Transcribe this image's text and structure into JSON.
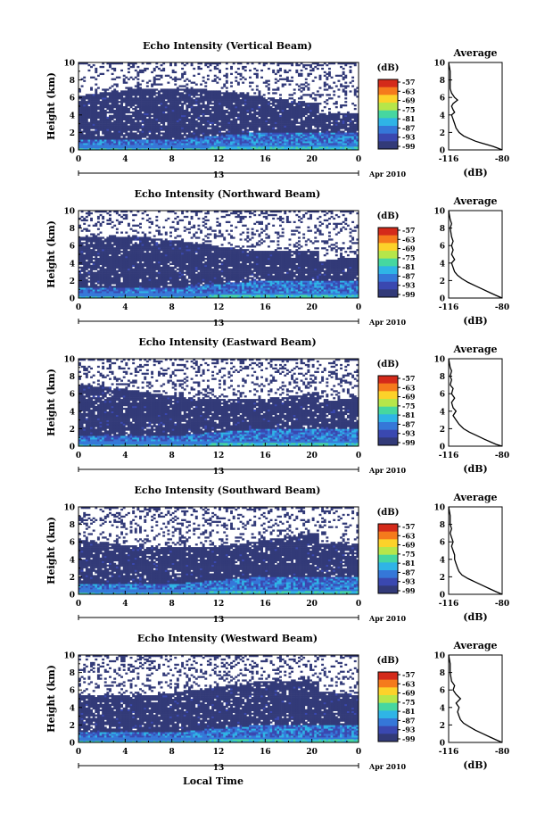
{
  "chart_data": {
    "type": "heatmap",
    "common": {
      "xlabel": "Local Time",
      "xticks": [
        "0",
        "4",
        "8",
        "12",
        "16",
        "20",
        "0"
      ],
      "x_range_hours": [
        0,
        24
      ],
      "date_label": "Apr 2010",
      "date_tick_label": "13",
      "ylabel": "Height (km)",
      "yticks": [
        "0",
        "2",
        "4",
        "6",
        "8",
        "10"
      ],
      "y_range_km": [
        0,
        10
      ],
      "colorbar_title": "(dB)",
      "colorbar_ticks": [
        "-57",
        "-63",
        "-69",
        "-75",
        "-81",
        "-87",
        "-93",
        "-99"
      ],
      "colorbar_colors": [
        "#d42a1a",
        "#f57a1c",
        "#fcd22a",
        "#b6e64a",
        "#46d7a0",
        "#2fb4e6",
        "#3577d8",
        "#3a48b0",
        "#323a78"
      ],
      "avg_title": "Average",
      "avg_xlabel": "(dB)",
      "avg_xticks": [
        "-116",
        "-80"
      ],
      "avg_xlim": [
        -116,
        -80
      ],
      "avg_yticks": [
        "0",
        "2",
        "4",
        "6",
        "8",
        "10"
      ]
    },
    "panels": [
      {
        "title": "Echo Intensity (Vertical Beam)",
        "avg_profile": [
          [
            -80,
            0.0
          ],
          [
            -83,
            0.2
          ],
          [
            -86,
            0.4
          ],
          [
            -90,
            0.6
          ],
          [
            -94,
            0.8
          ],
          [
            -98,
            1.0
          ],
          [
            -102,
            1.3
          ],
          [
            -106,
            1.6
          ],
          [
            -109,
            2.0
          ],
          [
            -111,
            2.5
          ],
          [
            -112,
            3.0
          ],
          [
            -113,
            3.5
          ],
          [
            -114,
            4.0
          ],
          [
            -112,
            4.3
          ],
          [
            -113,
            4.6
          ],
          [
            -114,
            5.0
          ],
          [
            -113,
            5.3
          ],
          [
            -110,
            5.7
          ],
          [
            -112,
            6.0
          ],
          [
            -114,
            6.5
          ],
          [
            -115,
            7.0
          ],
          [
            -115,
            8.0
          ],
          [
            -115,
            9.0
          ],
          [
            -116,
            10.0
          ]
        ]
      },
      {
        "title": "Echo Intensity (Northward Beam)",
        "avg_profile": [
          [
            -80,
            0.0
          ],
          [
            -84,
            0.3
          ],
          [
            -88,
            0.6
          ],
          [
            -93,
            1.0
          ],
          [
            -98,
            1.4
          ],
          [
            -103,
            1.8
          ],
          [
            -107,
            2.2
          ],
          [
            -110,
            2.6
          ],
          [
            -112,
            3.0
          ],
          [
            -113,
            3.5
          ],
          [
            -114,
            4.0
          ],
          [
            -112,
            4.4
          ],
          [
            -114,
            5.0
          ],
          [
            -113,
            5.5
          ],
          [
            -114,
            6.0
          ],
          [
            -113,
            6.5
          ],
          [
            -114,
            7.0
          ],
          [
            -115,
            8.0
          ],
          [
            -114,
            8.5
          ],
          [
            -115,
            9.0
          ],
          [
            -116,
            10.0
          ]
        ]
      },
      {
        "title": "Echo Intensity (Eastward Beam)",
        "avg_profile": [
          [
            -80,
            0.0
          ],
          [
            -84,
            0.2
          ],
          [
            -88,
            0.5
          ],
          [
            -92,
            0.8
          ],
          [
            -97,
            1.2
          ],
          [
            -102,
            1.6
          ],
          [
            -106,
            2.0
          ],
          [
            -109,
            2.5
          ],
          [
            -111,
            3.0
          ],
          [
            -113,
            3.5
          ],
          [
            -111,
            4.0
          ],
          [
            -113,
            4.4
          ],
          [
            -114,
            5.0
          ],
          [
            -112,
            5.5
          ],
          [
            -114,
            6.0
          ],
          [
            -113,
            6.6
          ],
          [
            -115,
            7.0
          ],
          [
            -114,
            7.6
          ],
          [
            -115,
            8.0
          ],
          [
            -114,
            8.6
          ],
          [
            -115,
            9.0
          ],
          [
            -116,
            10.0
          ]
        ]
      },
      {
        "title": "Echo Intensity (Southward Beam)",
        "avg_profile": [
          [
            -80,
            0.0
          ],
          [
            -84,
            0.3
          ],
          [
            -88,
            0.6
          ],
          [
            -93,
            1.0
          ],
          [
            -98,
            1.4
          ],
          [
            -103,
            1.8
          ],
          [
            -107,
            2.2
          ],
          [
            -109,
            2.6
          ],
          [
            -110,
            3.0
          ],
          [
            -111,
            3.5
          ],
          [
            -112,
            4.0
          ],
          [
            -112,
            4.5
          ],
          [
            -113,
            5.0
          ],
          [
            -114,
            5.5
          ],
          [
            -113,
            6.0
          ],
          [
            -114,
            6.5
          ],
          [
            -115,
            7.0
          ],
          [
            -114,
            7.5
          ],
          [
            -115,
            8.0
          ],
          [
            -115,
            9.0
          ],
          [
            -116,
            10.0
          ]
        ]
      },
      {
        "title": "Echo Intensity (Westward Beam)",
        "avg_profile": [
          [
            -80,
            0.0
          ],
          [
            -84,
            0.3
          ],
          [
            -88,
            0.6
          ],
          [
            -93,
            1.0
          ],
          [
            -98,
            1.4
          ],
          [
            -102,
            1.8
          ],
          [
            -106,
            2.2
          ],
          [
            -108,
            2.6
          ],
          [
            -109,
            3.0
          ],
          [
            -110,
            3.5
          ],
          [
            -109,
            4.0
          ],
          [
            -111,
            4.5
          ],
          [
            -108,
            5.0
          ],
          [
            -111,
            5.5
          ],
          [
            -113,
            6.0
          ],
          [
            -112,
            6.5
          ],
          [
            -114,
            7.0
          ],
          [
            -115,
            8.0
          ],
          [
            -115,
            9.0
          ],
          [
            -116,
            10.0
          ]
        ]
      }
    ]
  }
}
